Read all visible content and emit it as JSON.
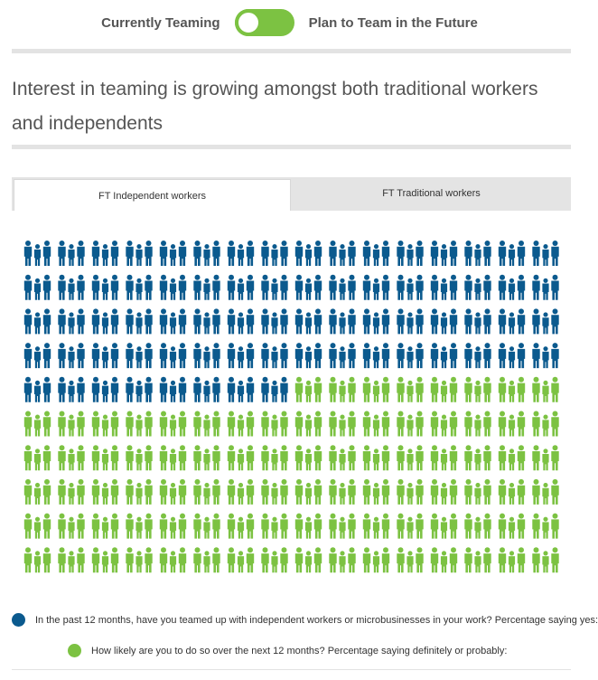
{
  "toggle": {
    "left_label": "Currently Teaming",
    "right_label": "Plan to Team in the Future",
    "color": "#7cc242"
  },
  "headline": "Interest in teaming is growing amongst both traditional workers and independents",
  "tabs": [
    {
      "label": "FT Independent workers",
      "active": true
    },
    {
      "label": "FT Traditional workers",
      "active": false
    }
  ],
  "pictogram": {
    "total_icons": 160,
    "icons_per_row": 16,
    "blue_icons": 72,
    "green_icons": 88,
    "blue_color": "#0b5a8e",
    "green_color": "#7cc242"
  },
  "legend": [
    {
      "color": "#0b5a8e",
      "text": "In the past 12 months, have you teamed up with independent workers or microbusinesses in your work? Percentage saying yes:"
    },
    {
      "color": "#7cc242",
      "text": "How likely are you to do so over the next 12 months? Percentage saying definitely or probably:"
    }
  ]
}
